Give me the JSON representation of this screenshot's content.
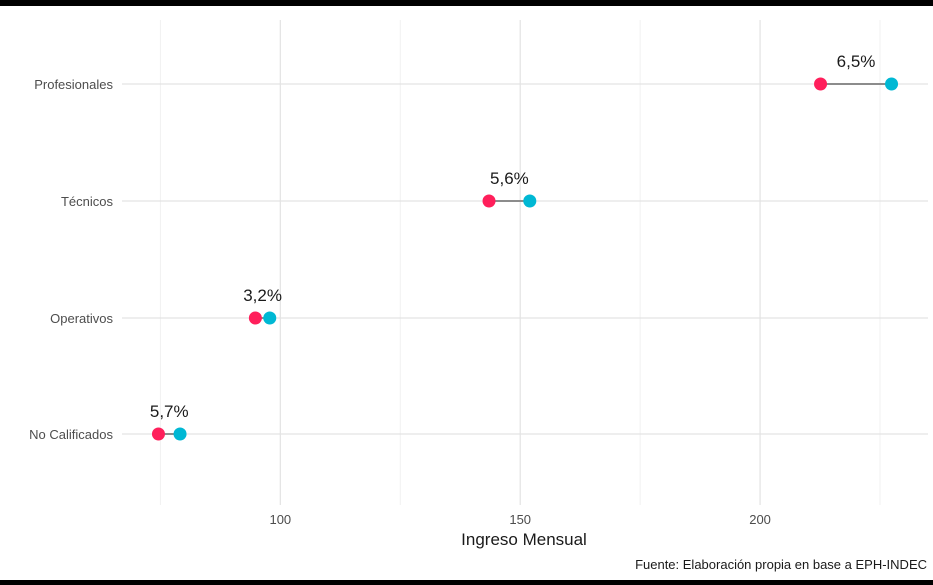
{
  "chart_data": {
    "type": "dumbbell",
    "xlabel": "Ingreso Mensual",
    "ylabel": "",
    "xlim": [
      67,
      235
    ],
    "x_ticks": [
      100,
      150,
      200
    ],
    "grid": true,
    "caption": "Fuente: Elaboración propia en base a EPH-INDEC",
    "colors": {
      "start": "#ff1f5b",
      "end": "#00b8d4",
      "segment": "#8c8c8c"
    },
    "categories": [
      "Profesionales",
      "Técnicos",
      "Operativos",
      "No Calificados"
    ],
    "rows": [
      {
        "category": "Profesionales",
        "start": 212.6,
        "end": 227.4,
        "label": "6,5%"
      },
      {
        "category": "Técnicos",
        "start": 143.5,
        "end": 152.0,
        "label": "5,6%"
      },
      {
        "category": "Operativos",
        "start": 94.8,
        "end": 97.8,
        "label": "3,2%"
      },
      {
        "category": "No Calificados",
        "start": 74.6,
        "end": 79.1,
        "label": "5,7%"
      }
    ]
  }
}
